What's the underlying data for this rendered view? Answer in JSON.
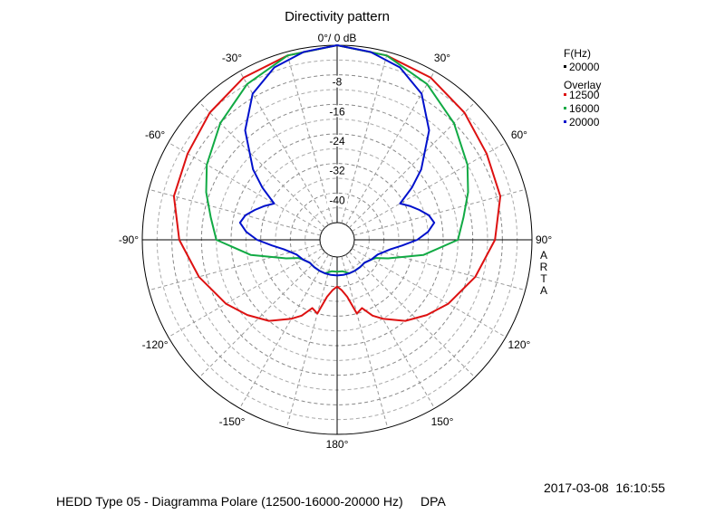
{
  "chart_data": {
    "type": "polar",
    "title": "Directivity pattern",
    "reference_label": "0°/ 0 dB",
    "radial_unit": "dB",
    "radial_range": [
      -48,
      0
    ],
    "radial_ticks": [
      -8,
      -16,
      -24,
      -32,
      -40
    ],
    "angle_labels": [
      "0°/ 0 dB",
      "30°",
      "60°",
      "90°",
      "120°",
      "150°",
      "180°",
      "-150°",
      "-120°",
      "-90°",
      "-60°",
      "-30°"
    ],
    "grid": true,
    "legend_position": "top-right",
    "legend": {
      "header": "F(Hz)",
      "main": "20000",
      "overlay_title": "Overlay"
    },
    "series": [
      {
        "name": "12500",
        "color": "#dd1111",
        "angles": [
          0,
          15,
          30,
          45,
          60,
          75,
          90,
          105,
          120,
          130,
          140,
          150,
          155,
          160,
          165,
          170,
          175,
          180
        ],
        "values": [
          0,
          -1,
          -2,
          -4,
          -6,
          -7,
          -10,
          -14,
          -18,
          -21,
          -24,
          -28,
          -30,
          -33,
          -32,
          -37,
          -39,
          -40
        ]
      },
      {
        "name": "16000",
        "color": "#11aa44",
        "angles": [
          0,
          15,
          30,
          45,
          60,
          70,
          80,
          90,
          100,
          110,
          115,
          120,
          130,
          140,
          150,
          160,
          170,
          180
        ],
        "values": [
          0,
          -1,
          -4,
          -8,
          -12,
          -15,
          -18,
          -20,
          -29,
          -38,
          -41,
          -42,
          -43,
          -43,
          -43,
          -43,
          -44,
          -44
        ]
      },
      {
        "name": "20000",
        "color": "#0011cc",
        "angles": [
          0,
          10,
          20,
          30,
          40,
          50,
          55,
          60,
          65,
          70,
          75,
          80,
          85,
          90,
          95,
          100,
          110,
          120,
          130,
          140,
          150,
          160,
          170,
          180
        ],
        "values": [
          0,
          -1,
          -3,
          -7,
          -14,
          -23,
          -28,
          -33,
          -31,
          -29,
          -27,
          -26,
          -28,
          -31,
          -35,
          -38,
          -41,
          -42,
          -43,
          -43,
          -43,
          -43,
          -43,
          -43
        ]
      }
    ]
  },
  "side_text": "ARTA",
  "footer": {
    "timestamp": "2017-03-08  16:10:55",
    "caption": "HEDD Type 05 - Diagramma Polare (12500-16000-20000 Hz)     DPA"
  }
}
